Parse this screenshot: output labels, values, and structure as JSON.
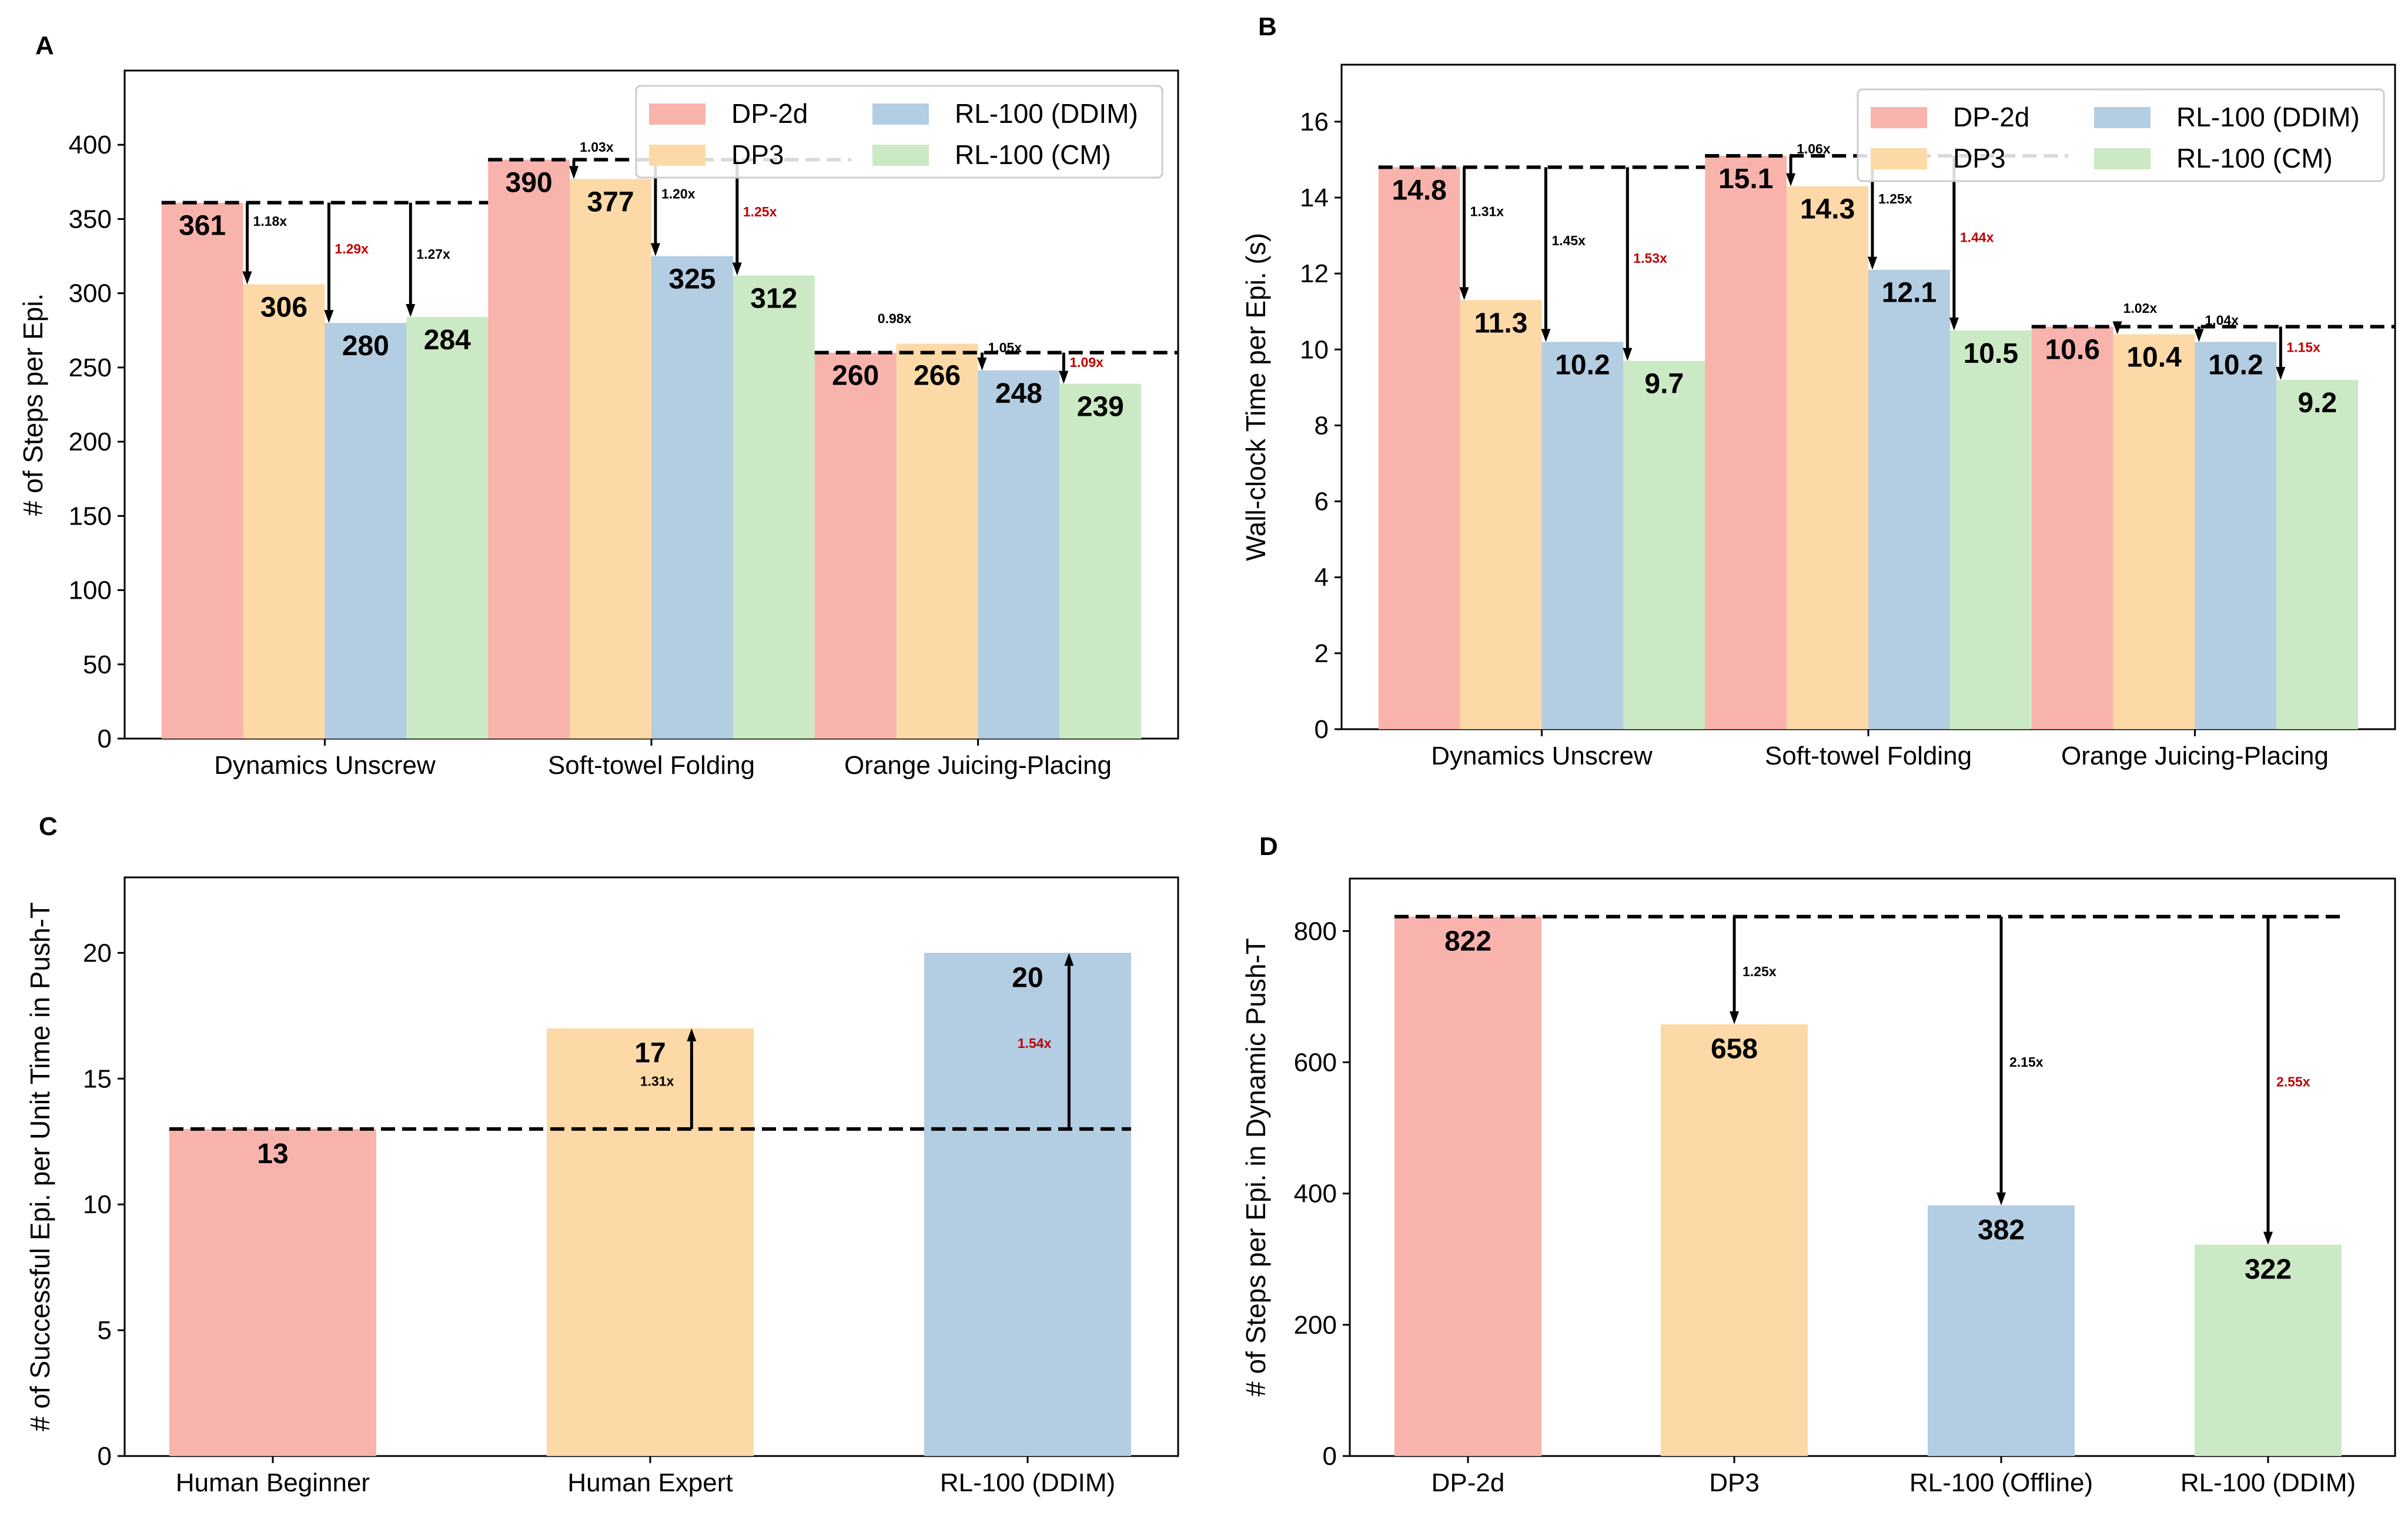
{
  "colors": {
    "DP-2d": "#f9b3ad",
    "DP3": "#fcd9a6",
    "RL-100 (DDIM)": "#b3cde2",
    "RL-100 (CM)": "#cbe9c4",
    "RL-100 (Offline)": "#b3cde2",
    "highlight": "#c00000"
  },
  "chart_data": [
    {
      "panel": "A",
      "type": "bar",
      "ylabel": "# of Steps per Epi.",
      "xlabel": "",
      "ylim": [
        0,
        450
      ],
      "yticks": [
        0,
        50,
        100,
        150,
        200,
        250,
        300,
        350,
        400
      ],
      "grid": false,
      "legend_position": "top-right",
      "categories": [
        "Dynamics Unscrew",
        "Soft-towel Folding",
        "Orange Juicing-Placing"
      ],
      "series": [
        {
          "name": "DP-2d",
          "values": [
            361,
            390,
            260
          ]
        },
        {
          "name": "DP3",
          "values": [
            306,
            377,
            266
          ]
        },
        {
          "name": "RL-100 (DDIM)",
          "values": [
            280,
            325,
            248
          ]
        },
        {
          "name": "RL-100 (CM)",
          "values": [
            284,
            312,
            239
          ]
        }
      ],
      "ratios": [
        [
          "1.18x",
          "1.29x",
          "1.27x"
        ],
        [
          "1.03x",
          "1.20x",
          "1.25x"
        ],
        [
          "0.98x",
          "1.05x",
          "1.09x"
        ]
      ],
      "highlight": [
        1,
        2,
        2
      ]
    },
    {
      "panel": "B",
      "type": "bar",
      "ylabel": "Wall-clock Time per Epi. (s)",
      "xlabel": "",
      "ylim": [
        0,
        17.5
      ],
      "yticks": [
        0,
        2,
        4,
        6,
        8,
        10,
        12,
        14,
        16
      ],
      "grid": false,
      "legend_position": "top-right",
      "categories": [
        "Dynamics Unscrew",
        "Soft-towel Folding",
        "Orange Juicing-Placing"
      ],
      "series": [
        {
          "name": "DP-2d",
          "values": [
            14.8,
            15.1,
            10.6
          ]
        },
        {
          "name": "DP3",
          "values": [
            11.3,
            14.3,
            10.4
          ]
        },
        {
          "name": "RL-100 (DDIM)",
          "values": [
            10.2,
            12.1,
            10.2
          ]
        },
        {
          "name": "RL-100 (CM)",
          "values": [
            9.7,
            10.5,
            9.2
          ]
        }
      ],
      "ratios": [
        [
          "1.31x",
          "1.45x",
          "1.53x"
        ],
        [
          "1.06x",
          "1.25x",
          "1.44x"
        ],
        [
          "1.02x",
          "1.04x",
          "1.15x"
        ]
      ],
      "highlight": [
        2,
        2,
        2
      ]
    },
    {
      "panel": "C",
      "type": "bar",
      "ylabel": "# of Successful Epi. per Unit Time in Push-T",
      "xlabel": "",
      "ylim": [
        0,
        23
      ],
      "yticks": [
        0,
        5,
        10,
        15,
        20
      ],
      "grid": false,
      "categories": [
        "Human Beginner",
        "Human Expert",
        "RL-100 (DDIM)"
      ],
      "values": [
        13,
        17,
        20
      ],
      "bar_colors": [
        "DP-2d",
        "DP3",
        "RL-100 (DDIM)"
      ],
      "ratios": [
        "",
        "1.31x",
        "1.54x"
      ],
      "highlight": 2
    },
    {
      "panel": "D",
      "type": "bar",
      "ylabel": "# of Steps per Epi. in Dynamic Push-T",
      "xlabel": "",
      "ylim": [
        0,
        880
      ],
      "yticks": [
        0,
        200,
        400,
        600,
        800
      ],
      "grid": false,
      "categories": [
        "DP-2d",
        "DP3",
        "RL-100 (Offline)",
        "RL-100 (DDIM)"
      ],
      "values": [
        822,
        658,
        382,
        322
      ],
      "bar_colors": [
        "DP-2d",
        "DP3",
        "RL-100 (Offline)",
        "RL-100 (CM)"
      ],
      "ratios": [
        "",
        "1.25x",
        "2.15x",
        "2.55x"
      ],
      "highlight": 3
    }
  ]
}
